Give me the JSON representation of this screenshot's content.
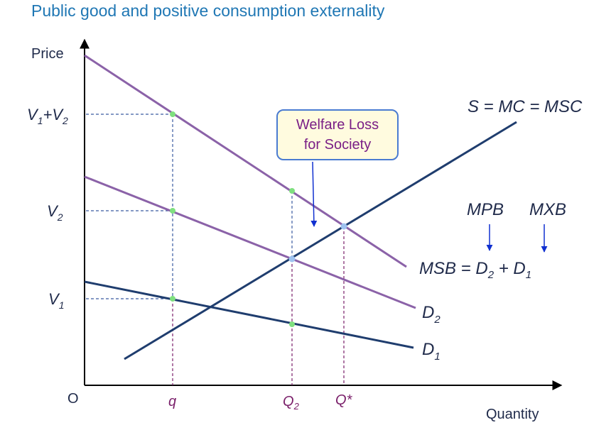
{
  "title": "Public good and positive consumption externality",
  "axes": {
    "y_label": "Price",
    "x_label": "Quantity",
    "origin": "O"
  },
  "y_ticks": {
    "v1v2": {
      "a": "V",
      "a_sub": "1",
      "plus": "+",
      "b": "V",
      "b_sub": "2"
    },
    "v2": {
      "a": "V",
      "a_sub": "2"
    },
    "v1": {
      "a": "V",
      "a_sub": "1"
    }
  },
  "x_ticks": {
    "q": "q",
    "q2": {
      "a": "Q",
      "a_sub": "2"
    },
    "qstar": "Q*"
  },
  "curves": {
    "supply": "S = MC = MSC",
    "msb": {
      "text1": "MSB = D",
      "sub1": "2",
      "text2": " + D",
      "sub2": "1"
    },
    "d2": {
      "a": "D",
      "a_sub": "2"
    },
    "d1": {
      "a": "D",
      "a_sub": "1"
    }
  },
  "annotations": {
    "mpb": "MPB",
    "mxb": "MXB",
    "welfare_line1": "Welfare Loss",
    "welfare_line2": "for Society"
  },
  "colors": {
    "demand": "#8b62a8",
    "supply_d1": "#1f3d6e",
    "axis": "#000000",
    "guide_blue": "#3a5aa0",
    "guide_purple": "#7a1f6a",
    "point_green": "#7fe07f",
    "point_blue": "#9fc3f0",
    "arrow_blue": "#1030d0"
  }
}
